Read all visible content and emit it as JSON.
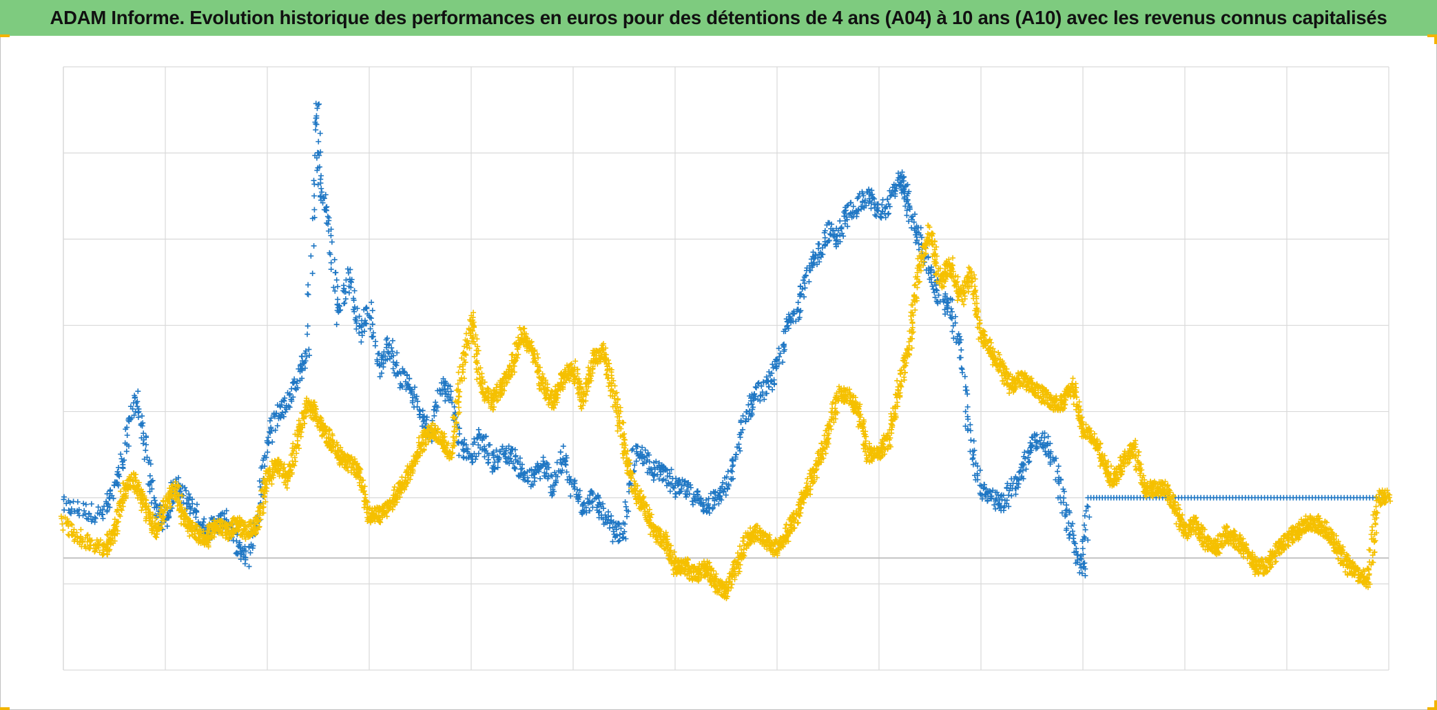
{
  "title": "ADAM Informe. Evolution historique des performances en euros pour des détentions de 4 ans (A04) à 10 ans (A10) avec les revenus connus capitalisés",
  "colors": {
    "header_bg": "#7ecb7f",
    "grid": "#d9d9d9",
    "axis": "#bfbfbf",
    "series_blue": "#1f77c4",
    "series_yellow": "#f5c000",
    "corner_accent": "#f2b400"
  },
  "chart_data": {
    "type": "scatter",
    "title": "ADAM Informe. Evolution historique des performances en euros pour des détentions de 4 ans (A04) à 10 ans (A10) avec les revenus connus capitalisés",
    "xlabel": "",
    "ylabel": "",
    "x_gridlines": 13,
    "y_gridlines": 7,
    "xlim": [
      0,
      13
    ],
    "ylim": [
      -1.3,
      5.7
    ],
    "grid": true,
    "legend": "none",
    "marker": "+",
    "tick_labels_visible": false,
    "series": [
      {
        "color": "#1f77c4",
        "points": [
          [
            0.0,
            0.6
          ],
          [
            0.2,
            0.55
          ],
          [
            0.4,
            0.5
          ],
          [
            0.5,
            0.8
          ],
          [
            0.6,
            1.2
          ],
          [
            0.7,
            1.9
          ],
          [
            0.8,
            1.3
          ],
          [
            0.9,
            0.6
          ],
          [
            1.0,
            0.4
          ],
          [
            1.1,
            0.9
          ],
          [
            1.2,
            0.7
          ],
          [
            1.3,
            0.5
          ],
          [
            1.4,
            0.3
          ],
          [
            1.5,
            0.4
          ],
          [
            1.6,
            0.45
          ],
          [
            1.7,
            0.1
          ],
          [
            1.8,
            0.0
          ],
          [
            1.9,
            0.5
          ],
          [
            2.0,
            1.3
          ],
          [
            2.1,
            1.7
          ],
          [
            2.2,
            1.8
          ],
          [
            2.3,
            2.1
          ],
          [
            2.4,
            2.4
          ],
          [
            2.48,
            5.3
          ],
          [
            2.52,
            4.3
          ],
          [
            2.6,
            3.9
          ],
          [
            2.7,
            2.8
          ],
          [
            2.8,
            3.3
          ],
          [
            2.9,
            2.6
          ],
          [
            3.0,
            2.9
          ],
          [
            3.1,
            2.2
          ],
          [
            3.2,
            2.5
          ],
          [
            3.3,
            2.1
          ],
          [
            3.4,
            2.0
          ],
          [
            3.5,
            1.7
          ],
          [
            3.6,
            1.4
          ],
          [
            3.7,
            2.0
          ],
          [
            3.8,
            1.9
          ],
          [
            3.9,
            1.3
          ],
          [
            4.0,
            1.2
          ],
          [
            4.1,
            1.4
          ],
          [
            4.2,
            1.1
          ],
          [
            4.3,
            1.2
          ],
          [
            4.4,
            1.2
          ],
          [
            4.5,
            1.0
          ],
          [
            4.6,
            0.9
          ],
          [
            4.7,
            1.1
          ],
          [
            4.8,
            0.8
          ],
          [
            4.9,
            1.2
          ],
          [
            5.0,
            0.8
          ],
          [
            5.1,
            0.6
          ],
          [
            5.2,
            0.7
          ],
          [
            5.3,
            0.5
          ],
          [
            5.4,
            0.3
          ],
          [
            5.5,
            0.3
          ],
          [
            5.6,
            1.2
          ],
          [
            5.7,
            1.2
          ],
          [
            5.8,
            1.0
          ],
          [
            5.9,
            1.0
          ],
          [
            6.0,
            0.8
          ],
          [
            6.1,
            0.8
          ],
          [
            6.2,
            0.7
          ],
          [
            6.3,
            0.6
          ],
          [
            6.4,
            0.7
          ],
          [
            6.5,
            0.8
          ],
          [
            6.6,
            1.2
          ],
          [
            6.7,
            1.7
          ],
          [
            6.8,
            1.9
          ],
          [
            6.9,
            2.0
          ],
          [
            7.0,
            2.2
          ],
          [
            7.1,
            2.7
          ],
          [
            7.2,
            2.9
          ],
          [
            7.3,
            3.3
          ],
          [
            7.4,
            3.5
          ],
          [
            7.5,
            3.8
          ],
          [
            7.6,
            3.7
          ],
          [
            7.7,
            4.0
          ],
          [
            7.8,
            4.1
          ],
          [
            7.9,
            4.2
          ],
          [
            8.0,
            4.0
          ],
          [
            8.1,
            4.1
          ],
          [
            8.2,
            4.4
          ],
          [
            8.25,
            4.3
          ],
          [
            8.3,
            4.0
          ],
          [
            8.4,
            3.7
          ],
          [
            8.5,
            3.3
          ],
          [
            8.6,
            3.0
          ],
          [
            8.7,
            2.9
          ],
          [
            8.8,
            2.4
          ],
          [
            8.9,
            1.3
          ],
          [
            9.0,
            0.8
          ],
          [
            9.1,
            0.7
          ],
          [
            9.2,
            0.6
          ],
          [
            9.3,
            0.8
          ],
          [
            9.4,
            1.0
          ],
          [
            9.5,
            1.3
          ],
          [
            9.6,
            1.4
          ],
          [
            9.7,
            1.2
          ],
          [
            9.8,
            0.7
          ],
          [
            9.9,
            0.2
          ],
          [
            10.0,
            -0.2
          ],
          [
            10.05,
            0.7
          ],
          [
            10.5,
            0.7
          ],
          [
            11.0,
            0.7
          ],
          [
            11.5,
            0.7
          ],
          [
            12.0,
            0.7
          ],
          [
            12.5,
            0.7
          ],
          [
            13.0,
            0.7
          ]
        ]
      },
      {
        "color": "#f5c000",
        "points": [
          [
            0.0,
            0.4
          ],
          [
            0.2,
            0.2
          ],
          [
            0.4,
            0.1
          ],
          [
            0.5,
            0.3
          ],
          [
            0.6,
            0.8
          ],
          [
            0.7,
            0.9
          ],
          [
            0.8,
            0.6
          ],
          [
            0.9,
            0.3
          ],
          [
            1.0,
            0.6
          ],
          [
            1.1,
            0.8
          ],
          [
            1.2,
            0.4
          ],
          [
            1.3,
            0.3
          ],
          [
            1.4,
            0.2
          ],
          [
            1.5,
            0.4
          ],
          [
            1.6,
            0.3
          ],
          [
            1.7,
            0.4
          ],
          [
            1.8,
            0.3
          ],
          [
            1.9,
            0.4
          ],
          [
            2.0,
            0.9
          ],
          [
            2.1,
            1.1
          ],
          [
            2.2,
            0.9
          ],
          [
            2.3,
            1.4
          ],
          [
            2.4,
            1.8
          ],
          [
            2.5,
            1.6
          ],
          [
            2.6,
            1.4
          ],
          [
            2.7,
            1.2
          ],
          [
            2.8,
            1.1
          ],
          [
            2.9,
            1.0
          ],
          [
            3.0,
            0.5
          ],
          [
            3.1,
            0.5
          ],
          [
            3.2,
            0.6
          ],
          [
            3.3,
            0.8
          ],
          [
            3.4,
            1.0
          ],
          [
            3.5,
            1.3
          ],
          [
            3.6,
            1.5
          ],
          [
            3.7,
            1.4
          ],
          [
            3.8,
            1.2
          ],
          [
            3.9,
            2.1
          ],
          [
            4.0,
            2.8
          ],
          [
            4.1,
            2.0
          ],
          [
            4.2,
            1.8
          ],
          [
            4.3,
            2.0
          ],
          [
            4.4,
            2.2
          ],
          [
            4.5,
            2.6
          ],
          [
            4.6,
            2.4
          ],
          [
            4.7,
            2.0
          ],
          [
            4.8,
            1.8
          ],
          [
            4.9,
            2.1
          ],
          [
            5.0,
            2.2
          ],
          [
            5.1,
            1.8
          ],
          [
            5.2,
            2.3
          ],
          [
            5.3,
            2.4
          ],
          [
            5.4,
            1.9
          ],
          [
            5.5,
            1.3
          ],
          [
            5.6,
            0.8
          ],
          [
            5.7,
            0.6
          ],
          [
            5.8,
            0.3
          ],
          [
            5.9,
            0.2
          ],
          [
            6.0,
            -0.1
          ],
          [
            6.1,
            -0.1
          ],
          [
            6.2,
            -0.2
          ],
          [
            6.3,
            -0.1
          ],
          [
            6.4,
            -0.3
          ],
          [
            6.5,
            -0.4
          ],
          [
            6.6,
            -0.1
          ],
          [
            6.7,
            0.2
          ],
          [
            6.8,
            0.3
          ],
          [
            6.9,
            0.2
          ],
          [
            7.0,
            0.1
          ],
          [
            7.1,
            0.3
          ],
          [
            7.2,
            0.5
          ],
          [
            7.3,
            0.8
          ],
          [
            7.4,
            1.1
          ],
          [
            7.5,
            1.4
          ],
          [
            7.6,
            1.9
          ],
          [
            7.7,
            1.9
          ],
          [
            7.8,
            1.7
          ],
          [
            7.9,
            1.2
          ],
          [
            8.0,
            1.2
          ],
          [
            8.1,
            1.4
          ],
          [
            8.2,
            2.0
          ],
          [
            8.3,
            2.5
          ],
          [
            8.4,
            3.4
          ],
          [
            8.5,
            3.8
          ],
          [
            8.6,
            3.2
          ],
          [
            8.7,
            3.4
          ],
          [
            8.8,
            3.0
          ],
          [
            8.9,
            3.3
          ],
          [
            9.0,
            2.6
          ],
          [
            9.1,
            2.4
          ],
          [
            9.2,
            2.2
          ],
          [
            9.3,
            2.0
          ],
          [
            9.4,
            2.1
          ],
          [
            9.5,
            2.0
          ],
          [
            9.6,
            1.9
          ],
          [
            9.7,
            1.8
          ],
          [
            9.8,
            1.8
          ],
          [
            9.9,
            2.0
          ],
          [
            10.0,
            1.5
          ],
          [
            10.1,
            1.4
          ],
          [
            10.2,
            1.1
          ],
          [
            10.3,
            0.9
          ],
          [
            10.4,
            1.1
          ],
          [
            10.5,
            1.3
          ],
          [
            10.6,
            0.8
          ],
          [
            10.7,
            0.8
          ],
          [
            10.8,
            0.8
          ],
          [
            10.9,
            0.6
          ],
          [
            11.0,
            0.3
          ],
          [
            11.1,
            0.4
          ],
          [
            11.2,
            0.2
          ],
          [
            11.3,
            0.1
          ],
          [
            11.4,
            0.3
          ],
          [
            11.5,
            0.2
          ],
          [
            11.6,
            0.1
          ],
          [
            11.7,
            -0.1
          ],
          [
            11.8,
            -0.1
          ],
          [
            11.9,
            0.1
          ],
          [
            12.0,
            0.2
          ],
          [
            12.1,
            0.3
          ],
          [
            12.2,
            0.4
          ],
          [
            12.3,
            0.4
          ],
          [
            12.4,
            0.3
          ],
          [
            12.5,
            0.1
          ],
          [
            12.6,
            -0.1
          ],
          [
            12.7,
            -0.2
          ],
          [
            12.8,
            -0.25
          ],
          [
            12.9,
            0.7
          ],
          [
            13.0,
            0.7
          ]
        ]
      }
    ]
  }
}
